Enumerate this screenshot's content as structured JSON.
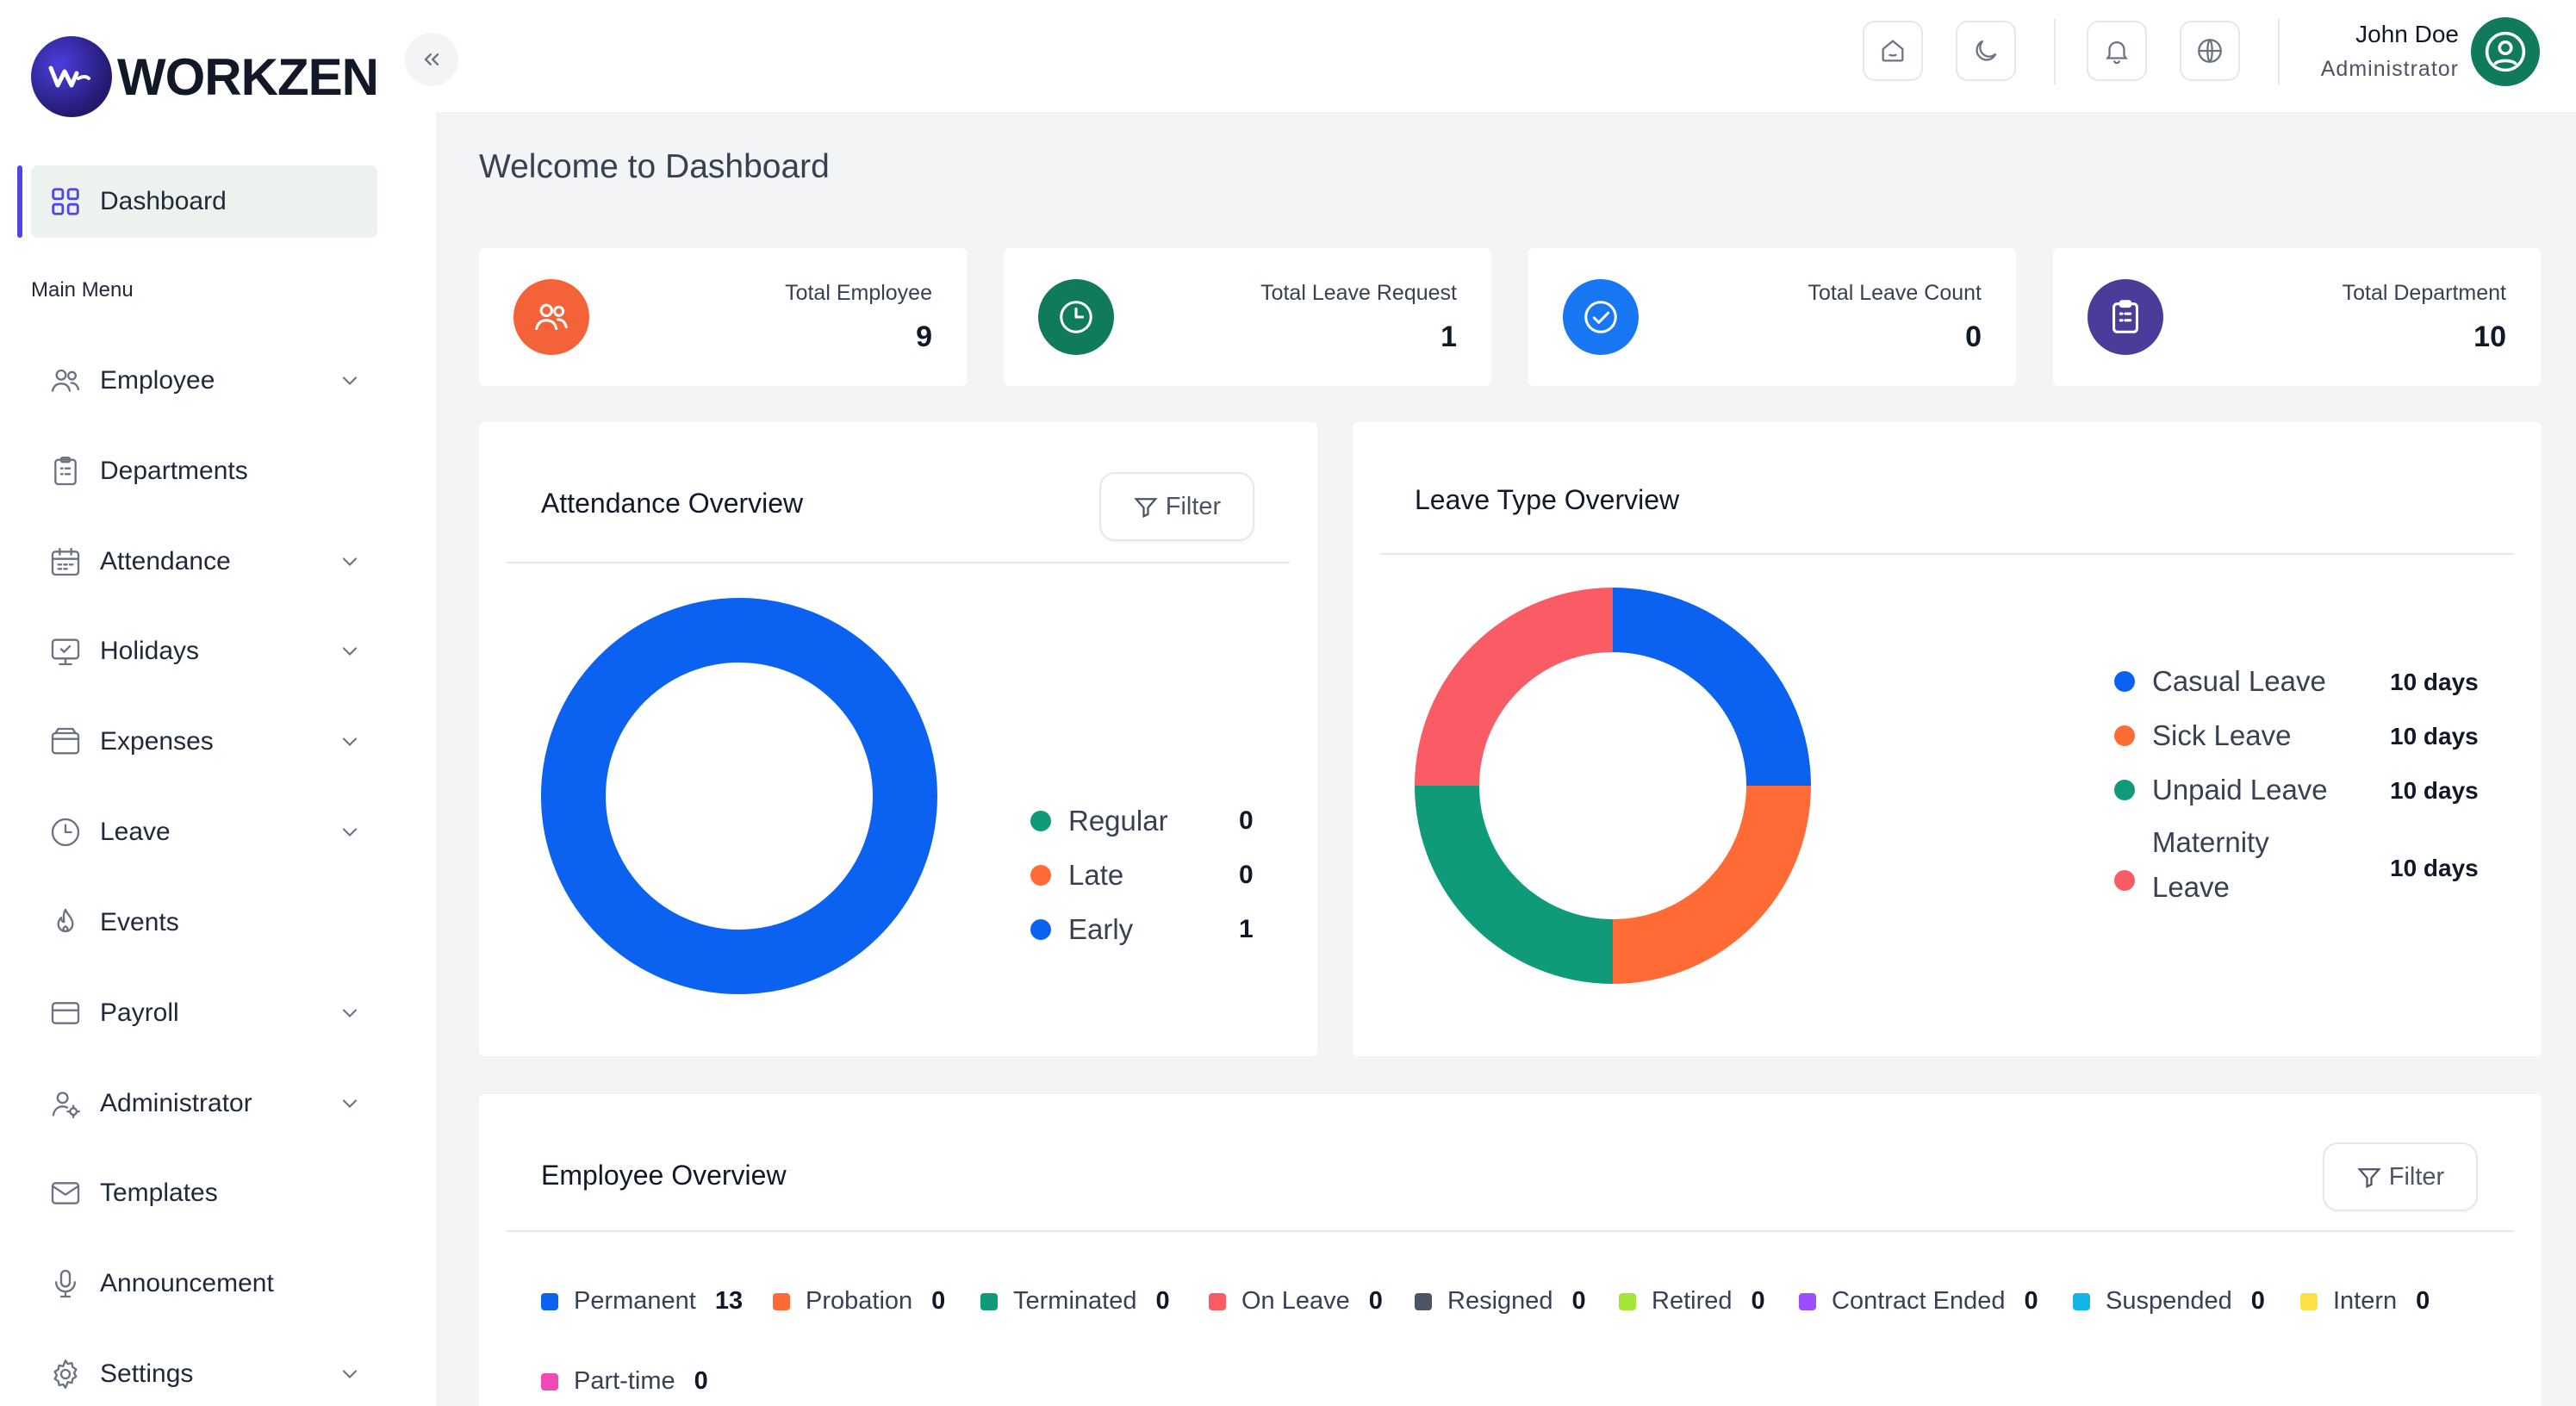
{
  "brand": {
    "name": "WORKZEN"
  },
  "sidebar": {
    "active": {
      "label": "Dashboard",
      "icon": "grid-icon"
    },
    "section_label": "Main Menu",
    "items": [
      {
        "label": "Employee",
        "icon": "users-icon",
        "has_chevron": true
      },
      {
        "label": "Departments",
        "icon": "clipboard-icon",
        "has_chevron": false
      },
      {
        "label": "Attendance",
        "icon": "calendar-icon",
        "has_chevron": true
      },
      {
        "label": "Holidays",
        "icon": "monitor-check-icon",
        "has_chevron": true
      },
      {
        "label": "Expenses",
        "icon": "wallet-icon",
        "has_chevron": true
      },
      {
        "label": "Leave",
        "icon": "clock-icon",
        "has_chevron": true
      },
      {
        "label": "Events",
        "icon": "flame-icon",
        "has_chevron": false
      },
      {
        "label": "Payroll",
        "icon": "credit-card-icon",
        "has_chevron": true
      },
      {
        "label": "Administrator",
        "icon": "user-gear-icon",
        "has_chevron": true
      },
      {
        "label": "Templates",
        "icon": "mail-icon",
        "has_chevron": false
      },
      {
        "label": "Announcement",
        "icon": "microphone-icon",
        "has_chevron": false
      },
      {
        "label": "Settings",
        "icon": "gear-icon",
        "has_chevron": true
      }
    ]
  },
  "topbar": {
    "user": {
      "name": "John Doe",
      "role": "Administrator"
    }
  },
  "page": {
    "title": "Welcome to Dashboard"
  },
  "stats": [
    {
      "label": "Total Employee",
      "value": "9",
      "color": "#f4623a",
      "icon": "users-icon"
    },
    {
      "label": "Total Leave Request",
      "value": "1",
      "color": "#0f7a5c",
      "icon": "clock-icon"
    },
    {
      "label": "Total Leave Count",
      "value": "0",
      "color": "#1877f2",
      "icon": "check-circle-icon"
    },
    {
      "label": "Total Department",
      "value": "10",
      "color": "#4b3c9a",
      "icon": "clipboard-icon"
    }
  ],
  "attendance": {
    "title": "Attendance Overview",
    "filter_label": "Filter",
    "legend": [
      {
        "label": "Regular",
        "value": "0",
        "color": "#0f9b7a"
      },
      {
        "label": "Late",
        "value": "0",
        "color": "#ff6b35"
      },
      {
        "label": "Early",
        "value": "1",
        "color": "#0b62f0"
      }
    ]
  },
  "leave_types": {
    "title": "Leave Type Overview",
    "legend": [
      {
        "label": "Casual Leave",
        "value": "10 days",
        "color": "#0b62f0"
      },
      {
        "label": "Sick Leave",
        "value": "10 days",
        "color": "#ff6b35"
      },
      {
        "label": "Unpaid Leave",
        "value": "10 days",
        "color": "#0f9b7a"
      },
      {
        "label": "Maternity Leave",
        "value": "10 days",
        "color": "#f95c64"
      }
    ]
  },
  "employee_overview": {
    "title": "Employee Overview",
    "filter_label": "Filter",
    "legend": [
      {
        "label": "Permanent",
        "value": "13",
        "color": "#0b62f0"
      },
      {
        "label": "Probation",
        "value": "0",
        "color": "#ff6b35"
      },
      {
        "label": "Terminated",
        "value": "0",
        "color": "#0f9b7a"
      },
      {
        "label": "On Leave",
        "value": "0",
        "color": "#f95c64"
      },
      {
        "label": "Resigned",
        "value": "0",
        "color": "#4b5563"
      },
      {
        "label": "Retired",
        "value": "0",
        "color": "#a3e635"
      },
      {
        "label": "Contract Ended",
        "value": "0",
        "color": "#9b4dff"
      },
      {
        "label": "Suspended",
        "value": "0",
        "color": "#12b5e6"
      },
      {
        "label": "Intern",
        "value": "0",
        "color": "#fde047"
      },
      {
        "label": "Part-time",
        "value": "0",
        "color": "#f048b5"
      }
    ]
  },
  "chart_data": [
    {
      "type": "pie",
      "categories": [
        "Regular",
        "Late",
        "Early"
      ],
      "values": [
        0,
        0,
        1
      ],
      "title": "Attendance Overview"
    },
    {
      "type": "pie",
      "categories": [
        "Casual Leave",
        "Sick Leave",
        "Unpaid Leave",
        "Maternity Leave"
      ],
      "values": [
        10,
        10,
        10,
        10
      ],
      "title": "Leave Type Overview"
    }
  ]
}
